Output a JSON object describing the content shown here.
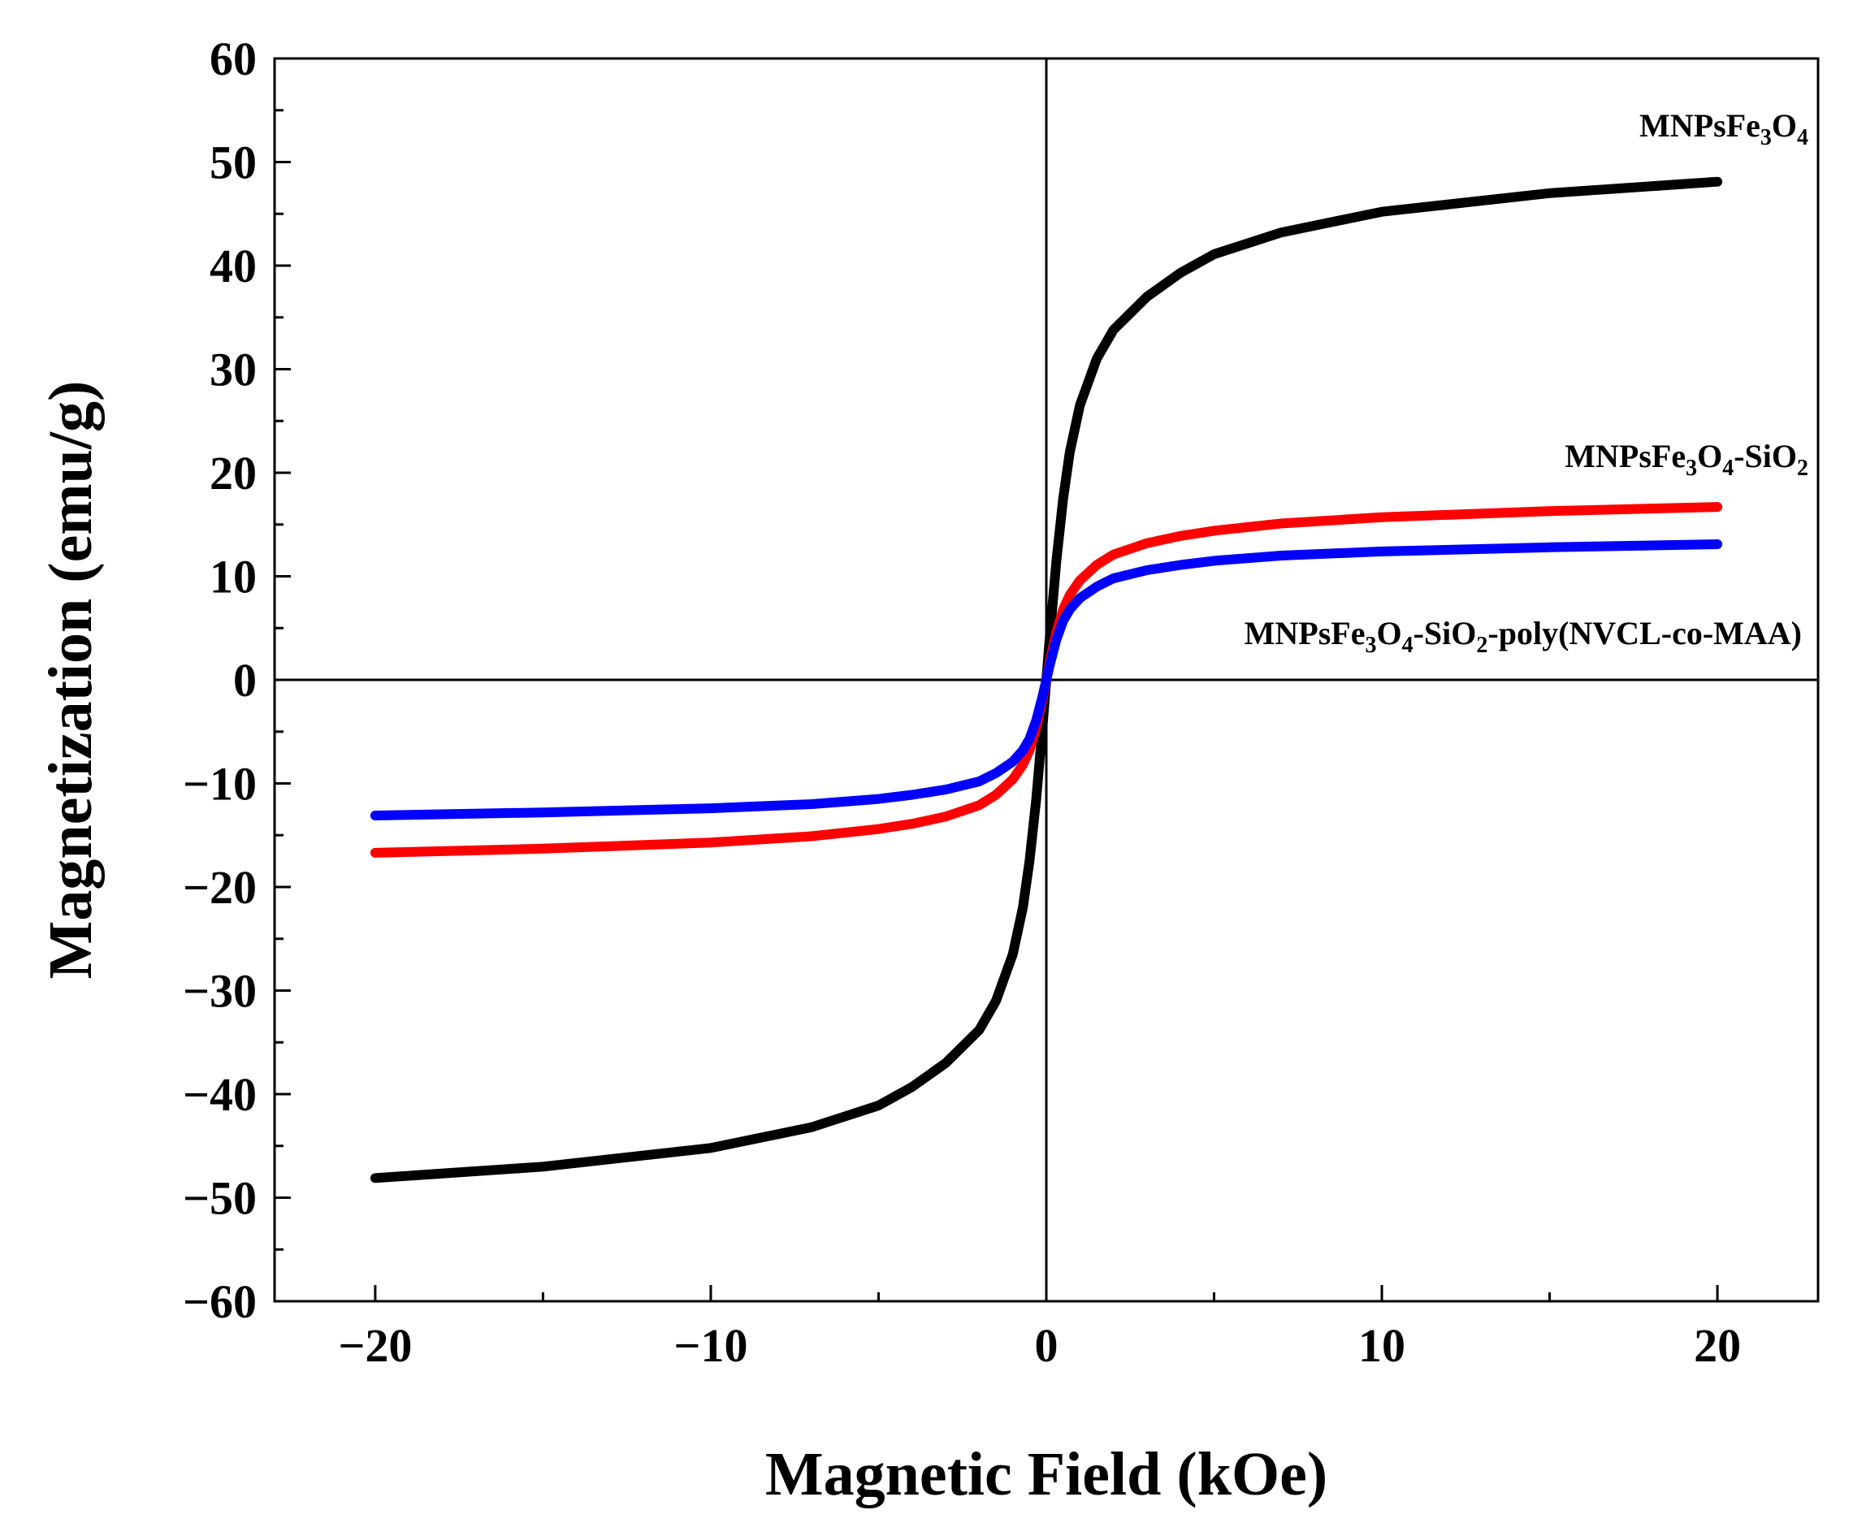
{
  "chart_data": {
    "type": "line",
    "title": "",
    "xlabel": "Magnetic Field (kOe)",
    "ylabel": "Magnetization (emu/g)",
    "xlim": [
      -23,
      23
    ],
    "ylim": [
      -60,
      60
    ],
    "x_ticks": [
      -20,
      -10,
      0,
      10,
      20
    ],
    "x_tick_labels": [
      "−20",
      "−10",
      "0",
      "10",
      "20"
    ],
    "y_ticks": [
      -60,
      -50,
      -40,
      -30,
      -20,
      -10,
      0,
      10,
      20,
      30,
      40,
      50,
      60
    ],
    "y_tick_labels": [
      "−60",
      "−50",
      "−40",
      "−30",
      "−20",
      "−10",
      "0",
      "10",
      "20",
      "30",
      "40",
      "50",
      "60"
    ],
    "grid": false,
    "zero_lines": true,
    "x": [
      -20,
      -15,
      -10,
      -7,
      -5,
      -4,
      -3,
      -2,
      -1.5,
      -1,
      -0.7,
      -0.5,
      -0.3,
      -0.1,
      0,
      0.1,
      0.3,
      0.5,
      0.7,
      1,
      1.5,
      2,
      3,
      4,
      5,
      7,
      10,
      15,
      20
    ],
    "series": [
      {
        "name": "MNPsFe3O4",
        "label_parts": [
          [
            "MNPsFe",
            ""
          ],
          [
            "3",
            "sub"
          ],
          [
            "O",
            ""
          ],
          [
            "4",
            "sub"
          ]
        ],
        "color": "#000000",
        "values": [
          -48.1,
          -47.0,
          -45.2,
          -43.2,
          -41.1,
          -39.3,
          -37.0,
          -33.8,
          -31.0,
          -26.5,
          -22.0,
          -17.5,
          -11.5,
          -4.0,
          0,
          4.0,
          11.5,
          17.5,
          22.0,
          26.5,
          31.0,
          33.8,
          37.0,
          39.3,
          41.1,
          43.2,
          45.2,
          47.0,
          48.1
        ]
      },
      {
        "name": "MNPsFe3O4-SiO2",
        "label_parts": [
          [
            "MNPsFe",
            ""
          ],
          [
            "3",
            "sub"
          ],
          [
            "O",
            ""
          ],
          [
            "4",
            "sub"
          ],
          [
            "-SiO",
            ""
          ],
          [
            "2",
            "sub"
          ]
        ],
        "color": "#ff0000",
        "values": [
          -16.7,
          -16.3,
          -15.7,
          -15.1,
          -14.4,
          -13.9,
          -13.2,
          -12.1,
          -11.1,
          -9.6,
          -8.2,
          -6.8,
          -4.6,
          -1.7,
          0,
          1.7,
          4.6,
          6.8,
          8.2,
          9.6,
          11.1,
          12.1,
          13.2,
          13.9,
          14.4,
          15.1,
          15.7,
          16.3,
          16.7
        ]
      },
      {
        "name": "MNPsFe3O4-SiO2-poly(NVCL-co-MAA)",
        "label_parts": [
          [
            "MNPsFe",
            ""
          ],
          [
            "3",
            "sub"
          ],
          [
            "O",
            ""
          ],
          [
            "4",
            "sub"
          ],
          [
            "-SiO",
            ""
          ],
          [
            "2",
            "sub"
          ],
          [
            "-poly(NVCL-co-MAA)",
            ""
          ]
        ],
        "color": "#0000ff",
        "values": [
          -13.1,
          -12.8,
          -12.4,
          -12.0,
          -11.5,
          -11.1,
          -10.6,
          -9.8,
          -9.0,
          -7.9,
          -6.8,
          -5.7,
          -3.9,
          -1.4,
          0,
          1.4,
          3.9,
          5.7,
          6.8,
          7.9,
          9.0,
          9.8,
          10.6,
          11.1,
          11.5,
          12.0,
          12.4,
          12.8,
          13.1
        ]
      }
    ]
  }
}
